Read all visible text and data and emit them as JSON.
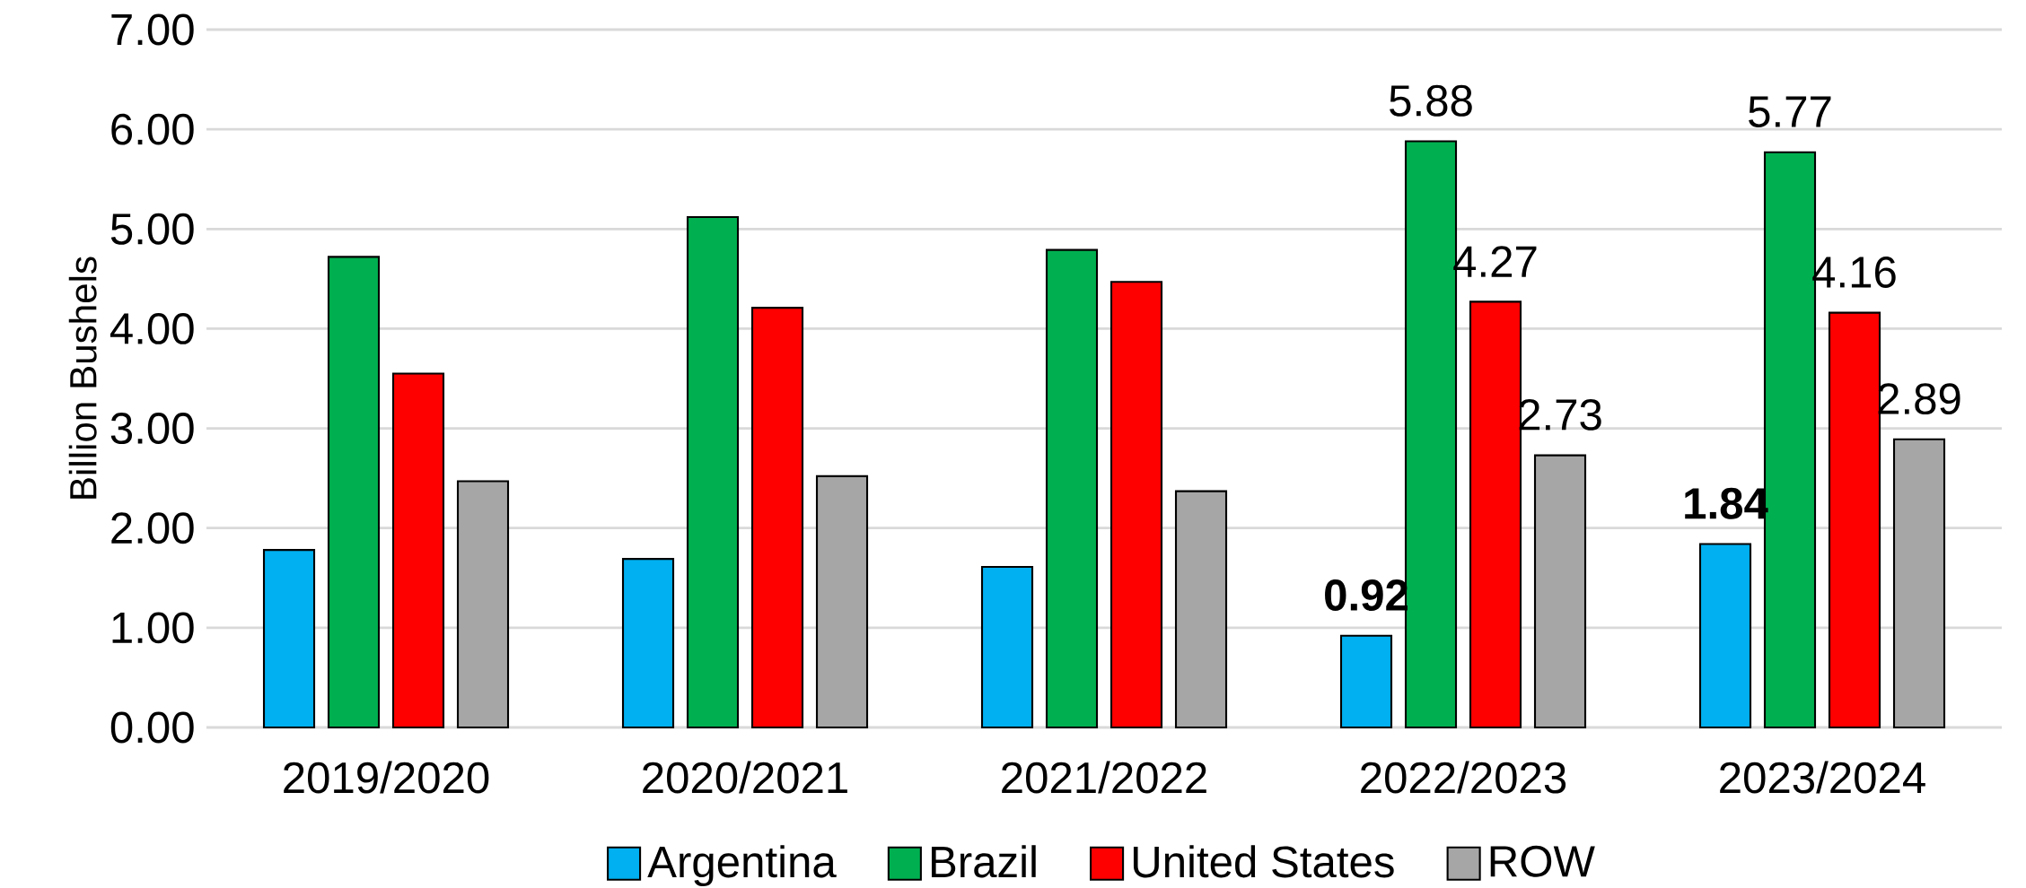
{
  "chart_data": {
    "type": "bar",
    "ylabel": "Billion Bushels",
    "categories": [
      "2019/2020",
      "2020/2021",
      "2021/2022",
      "2022/2023",
      "2023/2024"
    ],
    "series": [
      {
        "name": "Argentina",
        "color": "#00b0f0",
        "values": [
          1.78,
          1.69,
          1.61,
          0.92,
          1.84
        ],
        "value_labels": [
          null,
          null,
          null,
          "**0.92**",
          "**1.84**"
        ]
      },
      {
        "name": "Brazil",
        "color": "#00b050",
        "values": [
          4.72,
          5.12,
          4.79,
          5.88,
          5.77
        ],
        "value_labels": [
          null,
          null,
          null,
          "5.88",
          "5.77"
        ]
      },
      {
        "name": "United States",
        "color": "#ff0000",
        "values": [
          3.55,
          4.21,
          4.47,
          4.27,
          4.16
        ],
        "value_labels": [
          null,
          null,
          null,
          "4.27",
          "4.16"
        ]
      },
      {
        "name": "ROW",
        "color": "#a6a6a6",
        "values": [
          2.47,
          2.52,
          2.37,
          2.73,
          2.89
        ],
        "value_labels": [
          null,
          null,
          null,
          "2.73",
          "2.89"
        ]
      }
    ],
    "ylim": [
      0,
      7
    ],
    "yticks": [
      {
        "value": 0,
        "label": "0.00"
      },
      {
        "value": 1,
        "label": "1.00"
      },
      {
        "value": 2,
        "label": "2.00"
      },
      {
        "value": 3,
        "label": "3.00"
      },
      {
        "value": 4,
        "label": "4.00"
      },
      {
        "value": 5,
        "label": "5.00"
      },
      {
        "value": 6,
        "label": "6.00"
      },
      {
        "value": 7,
        "label": "7.00"
      }
    ],
    "grid": "y",
    "legend": "bottom"
  }
}
